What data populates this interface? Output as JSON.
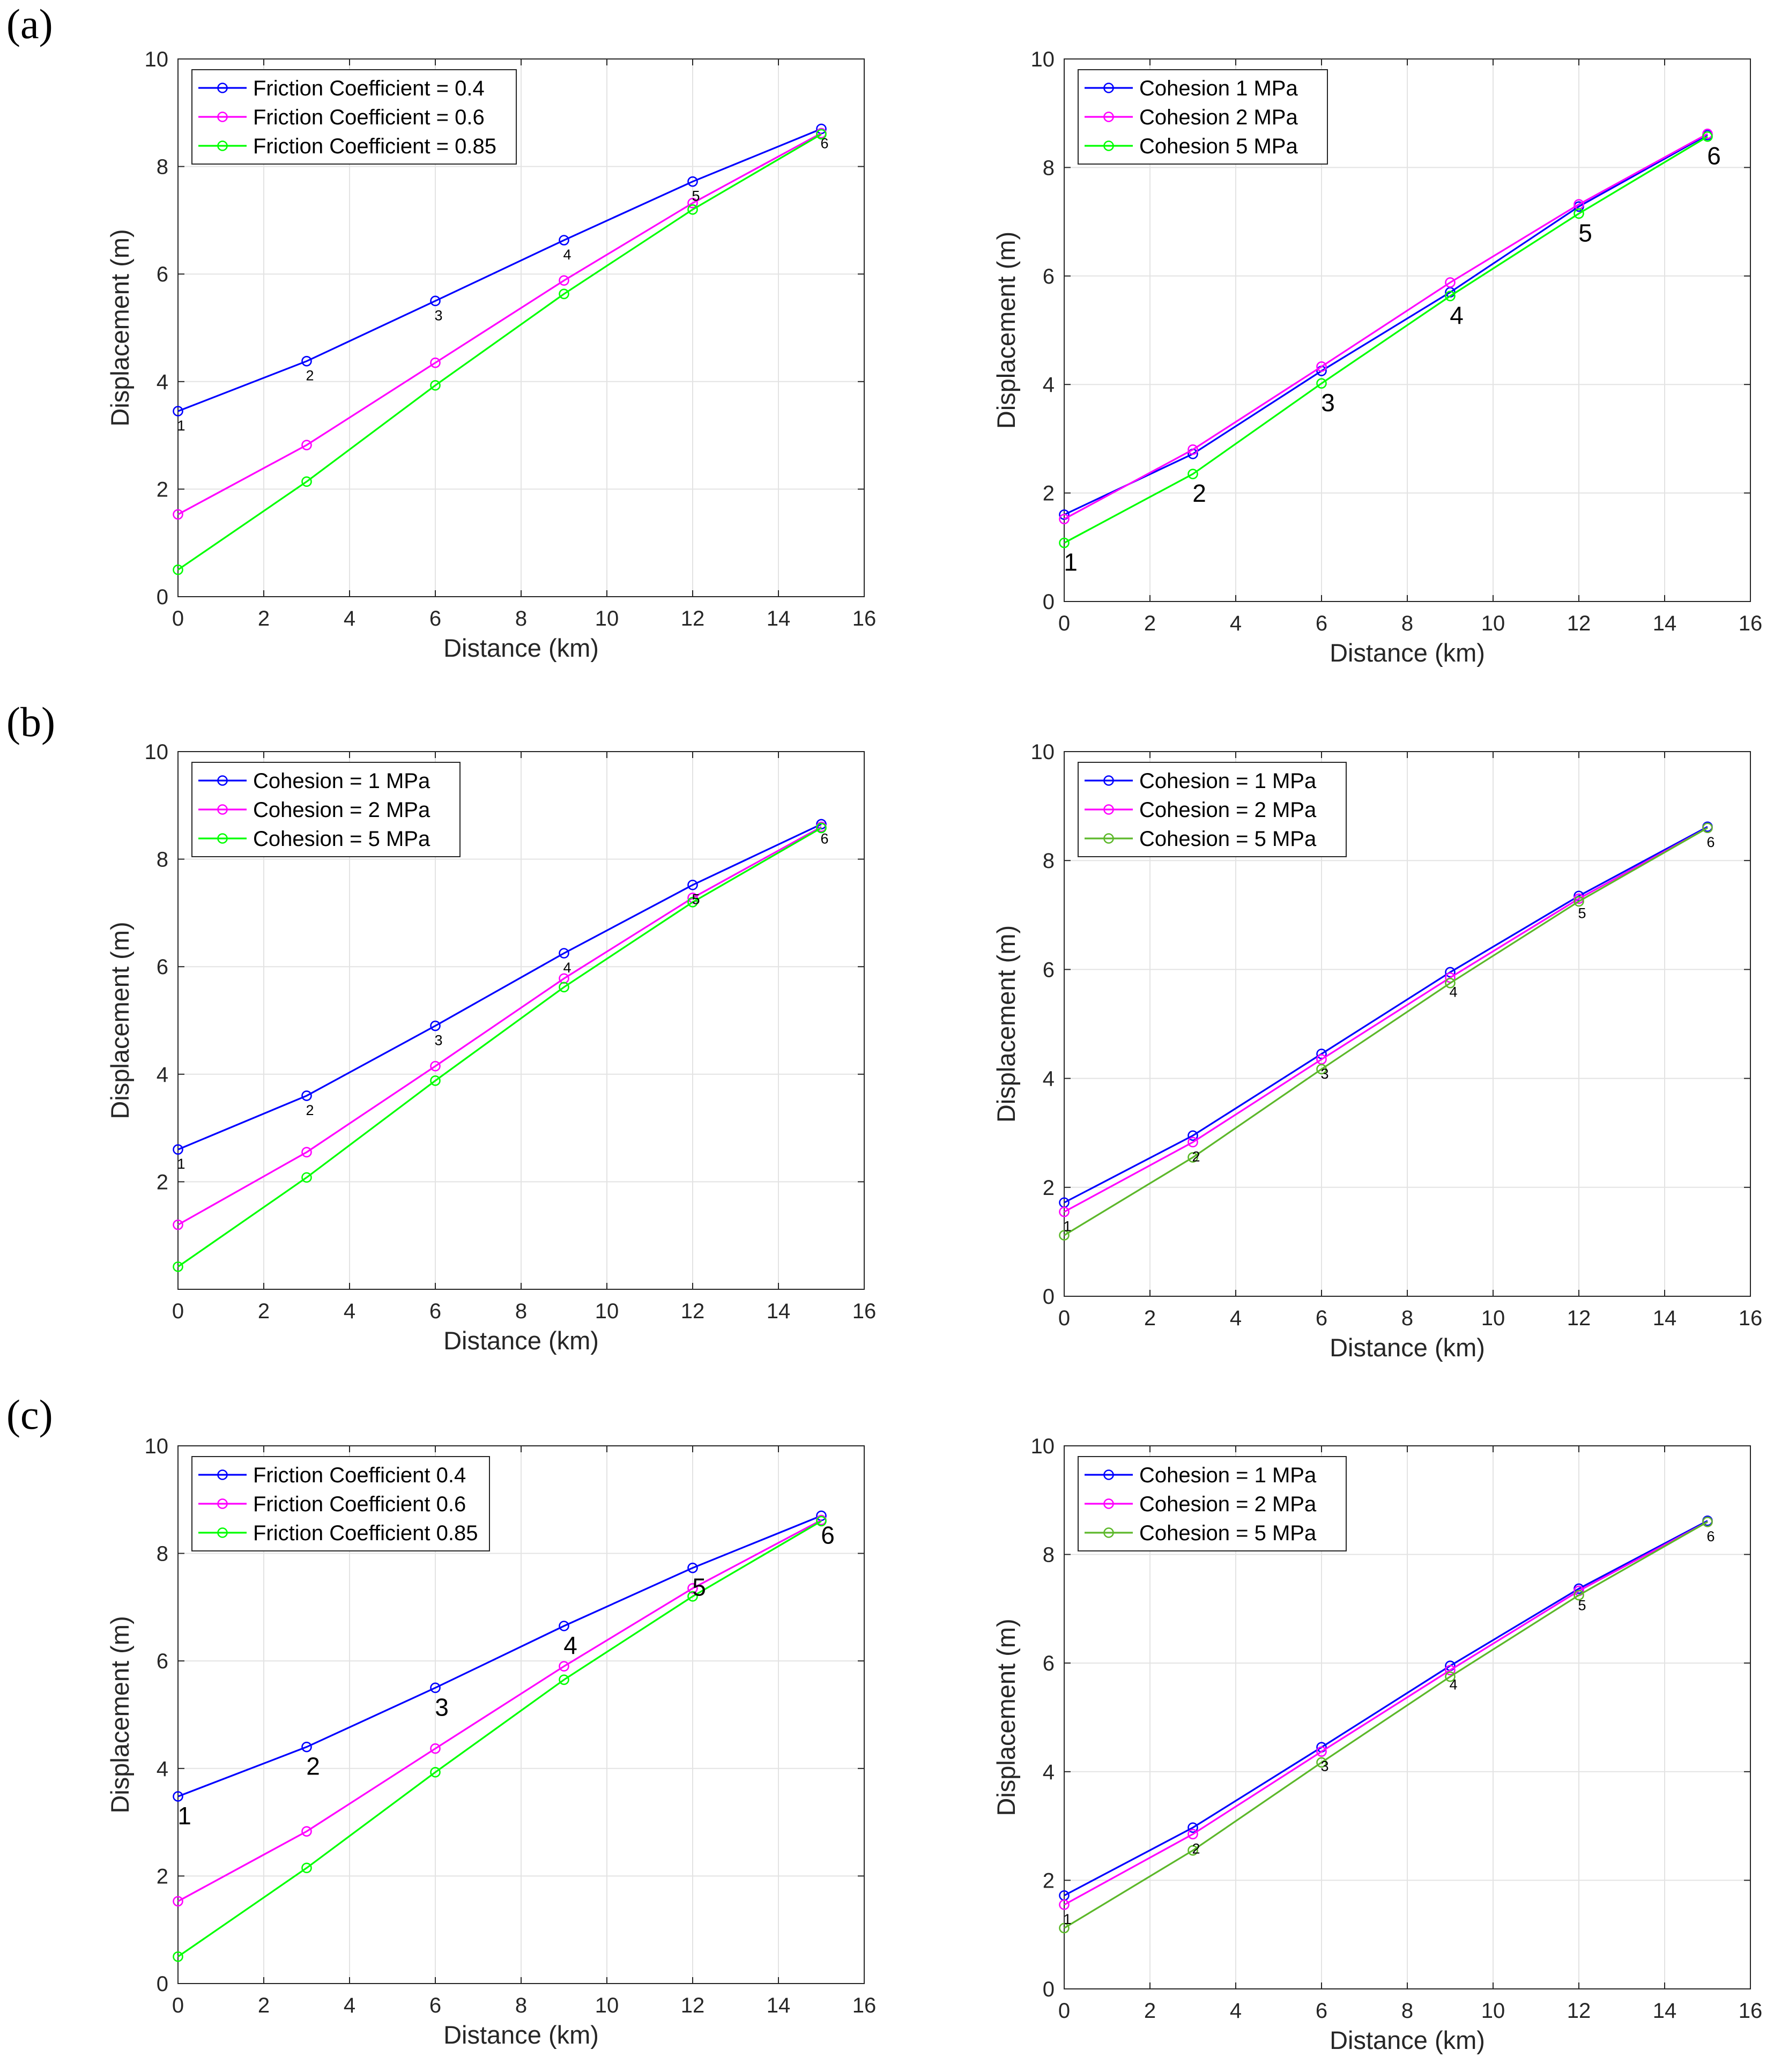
{
  "panel_labels": [
    "(a)",
    "(b)",
    "(c)"
  ],
  "chart_data": [
    {
      "type": "line",
      "panel": "(a)",
      "position": "left",
      "xlabel": "Distance (km)",
      "ylabel": "Displacement (m)",
      "xlim": [
        0,
        16
      ],
      "ylim": [
        0,
        10
      ],
      "xticks": [
        0,
        2,
        4,
        6,
        8,
        10,
        12,
        14,
        16
      ],
      "yticks": [
        0,
        2,
        4,
        6,
        8,
        10
      ],
      "grid": true,
      "legend": "top-left",
      "x": [
        0,
        3,
        6,
        9,
        12,
        15
      ],
      "point_labels": [
        "1",
        "2",
        "3",
        "4",
        "5",
        "6"
      ],
      "label_series": 0,
      "label_size": "small",
      "series": [
        {
          "name": "Friction Coefficient = 0.4",
          "color": "#0000ff",
          "values": [
            3.45,
            4.38,
            5.5,
            6.63,
            7.72,
            8.7
          ]
        },
        {
          "name": "Friction Coefficient = 0.6",
          "color": "#ff00ff",
          "values": [
            1.53,
            2.82,
            4.35,
            5.88,
            7.32,
            8.62
          ]
        },
        {
          "name": "Friction Coefficient = 0.85",
          "color": "#00ff00",
          "values": [
            0.5,
            2.14,
            3.93,
            5.63,
            7.2,
            8.6
          ]
        }
      ]
    },
    {
      "type": "line",
      "panel": "(a)",
      "position": "right",
      "xlabel": "Distance (km)",
      "ylabel": "Displacement (m)",
      "xlim": [
        0,
        16
      ],
      "ylim": [
        0,
        10
      ],
      "xticks": [
        0,
        2,
        4,
        6,
        8,
        10,
        12,
        14,
        16
      ],
      "yticks": [
        0,
        2,
        4,
        6,
        8,
        10
      ],
      "grid": true,
      "legend": "top-left",
      "x": [
        0,
        3,
        6,
        9,
        12,
        15
      ],
      "point_labels": [
        "1",
        "2",
        "3",
        "4",
        "5",
        "6"
      ],
      "label_series": 2,
      "label_size": "large",
      "series": [
        {
          "name": "Cohesion 1 MPa",
          "color": "#0000ff",
          "values": [
            1.6,
            2.72,
            4.25,
            5.7,
            7.28,
            8.6
          ]
        },
        {
          "name": "Cohesion 2 MPa",
          "color": "#ff00ff",
          "values": [
            1.52,
            2.8,
            4.33,
            5.88,
            7.32,
            8.62
          ]
        },
        {
          "name": "Cohesion 5 MPa",
          "color": "#00ff00",
          "values": [
            1.08,
            2.35,
            4.02,
            5.63,
            7.15,
            8.57
          ]
        }
      ]
    },
    {
      "type": "line",
      "panel": "(b)",
      "position": "left",
      "xlabel": "Distance (km)",
      "ylabel": "Displacement (m)",
      "xlim": [
        0,
        16
      ],
      "ylim": [
        0,
        10
      ],
      "xticks": [
        0,
        2,
        4,
        6,
        8,
        10,
        12,
        14,
        16
      ],
      "yticks": [
        2,
        4,
        6,
        8,
        10
      ],
      "grid": true,
      "legend": "top-left",
      "x": [
        0,
        3,
        6,
        9,
        12,
        15
      ],
      "point_labels": [
        "1",
        "2",
        "3",
        "4",
        "5",
        "6"
      ],
      "label_series": 0,
      "label_size": "small",
      "series": [
        {
          "name": "Cohesion = 1 MPa",
          "color": "#0000ff",
          "values": [
            2.6,
            3.6,
            4.9,
            6.25,
            7.52,
            8.65
          ]
        },
        {
          "name": "Cohesion = 2 MPa",
          "color": "#ff00ff",
          "values": [
            1.2,
            2.55,
            4.15,
            5.78,
            7.28,
            8.6
          ]
        },
        {
          "name": "Cohesion = 5 MPa",
          "color": "#00ff00",
          "values": [
            0.42,
            2.08,
            3.88,
            5.62,
            7.2,
            8.58
          ]
        }
      ]
    },
    {
      "type": "line",
      "panel": "(b)",
      "position": "right",
      "xlabel": "Distance (km)",
      "ylabel": "Displacement (m)",
      "xlim": [
        0,
        16
      ],
      "ylim": [
        0,
        10
      ],
      "xticks": [
        0,
        2,
        4,
        6,
        8,
        10,
        12,
        14,
        16
      ],
      "yticks": [
        0,
        2,
        4,
        6,
        8,
        10
      ],
      "grid": true,
      "legend": "top-left",
      "x": [
        0,
        3,
        6,
        9,
        12,
        15
      ],
      "point_labels": [
        "1",
        "2",
        "3",
        "4",
        "5",
        "6"
      ],
      "label_series": 1,
      "label_size": "small",
      "series": [
        {
          "name": "Cohesion = 1 MPa",
          "color": "#0000ff",
          "values": [
            1.72,
            2.95,
            4.45,
            5.95,
            7.35,
            8.62
          ]
        },
        {
          "name": "Cohesion = 2 MPa",
          "color": "#ff00ff",
          "values": [
            1.55,
            2.83,
            4.35,
            5.85,
            7.3,
            8.6
          ]
        },
        {
          "name": "Cohesion = 5 MPa",
          "color": "#5cb82a",
          "values": [
            1.12,
            2.55,
            4.17,
            5.75,
            7.25,
            8.6
          ]
        }
      ]
    },
    {
      "type": "line",
      "panel": "(c)",
      "position": "left",
      "xlabel": "Distance (km)",
      "ylabel": "Displacement (m)",
      "xlim": [
        0,
        16
      ],
      "ylim": [
        0,
        10
      ],
      "xticks": [
        0,
        2,
        4,
        6,
        8,
        10,
        12,
        14,
        16
      ],
      "yticks": [
        0,
        2,
        4,
        6,
        8,
        10
      ],
      "grid": true,
      "legend": "top-left",
      "x": [
        0,
        3,
        6,
        9,
        12,
        15
      ],
      "point_labels": [
        "1",
        "2",
        "3",
        "4",
        "5",
        "6"
      ],
      "label_series": 0,
      "label_size": "large",
      "series": [
        {
          "name": "Friction Coefficient 0.4",
          "color": "#0000ff",
          "values": [
            3.48,
            4.4,
            5.5,
            6.65,
            7.73,
            8.7
          ]
        },
        {
          "name": "Friction Coefficient 0.6",
          "color": "#ff00ff",
          "values": [
            1.53,
            2.83,
            4.37,
            5.9,
            7.35,
            8.62
          ]
        },
        {
          "name": "Friction Coefficient 0.85",
          "color": "#00ff00",
          "values": [
            0.5,
            2.15,
            3.93,
            5.65,
            7.2,
            8.6
          ]
        }
      ]
    },
    {
      "type": "line",
      "panel": "(c)",
      "position": "right",
      "xlabel": "Distance (km)",
      "ylabel": "Displacement (m)",
      "xlim": [
        0,
        16
      ],
      "ylim": [
        0,
        10
      ],
      "xticks": [
        0,
        2,
        4,
        6,
        8,
        10,
        12,
        14,
        16
      ],
      "yticks": [
        0,
        2,
        4,
        6,
        8,
        10
      ],
      "grid": true,
      "legend": "top-left",
      "x": [
        0,
        3,
        6,
        9,
        12,
        15
      ],
      "point_labels": [
        "1",
        "2",
        "3",
        "4",
        "5",
        "6"
      ],
      "label_series": 1,
      "label_size": "small",
      "series": [
        {
          "name": "Cohesion = 1 MPa",
          "color": "#0000ff",
          "values": [
            1.72,
            2.97,
            4.45,
            5.95,
            7.37,
            8.62
          ]
        },
        {
          "name": "Cohesion = 2 MPa",
          "color": "#ff00ff",
          "values": [
            1.55,
            2.85,
            4.37,
            5.87,
            7.33,
            8.6
          ]
        },
        {
          "name": "Cohesion = 5 MPa",
          "color": "#5cb82a",
          "values": [
            1.12,
            2.55,
            4.17,
            5.75,
            7.25,
            8.6
          ]
        }
      ]
    }
  ]
}
